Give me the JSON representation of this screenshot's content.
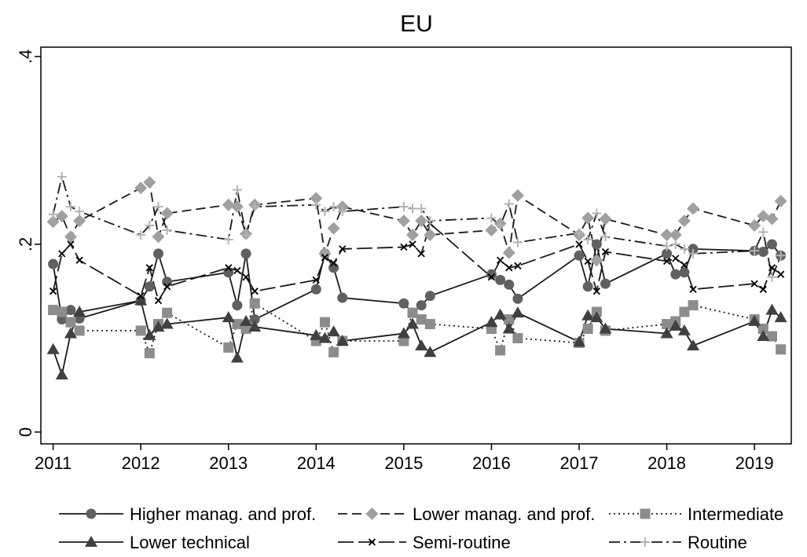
{
  "chart_data": {
    "type": "line",
    "title": "EU",
    "x": [
      2011,
      2011.1,
      2011.2,
      2011.3,
      2012,
      2012.1,
      2012.2,
      2012.3,
      2013,
      2013.1,
      2013.2,
      2013.3,
      2014,
      2014.1,
      2014.2,
      2014.3,
      2015,
      2015.1,
      2015.2,
      2015.3,
      2016,
      2016.1,
      2016.2,
      2016.3,
      2017,
      2017.1,
      2017.2,
      2017.3,
      2018,
      2018.1,
      2018.2,
      2018.3,
      2019,
      2019.1,
      2019.2,
      2019.3
    ],
    "xlim": [
      2010.86,
      2019.42
    ],
    "xticks": [
      2011,
      2012,
      2013,
      2014,
      2015,
      2016,
      2017,
      2018,
      2019
    ],
    "ylim": [
      -0.0126,
      0.41
    ],
    "yticks": [
      0,
      {
        "value": 0.2,
        "label": ".2"
      },
      {
        "value": 0.4,
        "label": ".4"
      }
    ],
    "legend": "bottom",
    "series": [
      {
        "name": "Higher manag. and prof.",
        "color": "#606060",
        "line_color": "#1a1a1a",
        "marker": "circle",
        "dash": "solid",
        "values": [
          0.179,
          0.12,
          0.13,
          0.121,
          0.14,
          0.155,
          0.19,
          0.16,
          0.17,
          0.135,
          0.19,
          0.12,
          0.152,
          0.19,
          0.175,
          0.143,
          0.137,
          0.127,
          0.135,
          0.145,
          0.168,
          0.162,
          0.157,
          0.142,
          0.188,
          0.155,
          0.2,
          0.158,
          0.19,
          0.168,
          0.17,
          0.195,
          0.193,
          0.192,
          0.2,
          0.188
        ]
      },
      {
        "name": "Lower manag. and prof.",
        "color": "#a0a0a0",
        "line_color": "#1a1a1a",
        "marker": "diamond",
        "dash": "dash",
        "values": [
          0.224,
          0.23,
          0.208,
          0.225,
          0.26,
          0.266,
          0.208,
          0.233,
          0.242,
          0.24,
          0.211,
          0.242,
          0.249,
          0.19,
          0.217,
          0.24,
          0.225,
          0.21,
          0.225,
          0.21,
          0.215,
          0.222,
          0.191,
          0.252,
          0.21,
          0.228,
          0.183,
          0.227,
          0.21,
          0.21,
          0.225,
          0.238,
          0.22,
          0.23,
          0.227,
          0.246
        ]
      },
      {
        "name": "Intermediate",
        "color": "#8c8c8c",
        "line_color": "#1a1a1a",
        "marker": "square",
        "dash": "dot",
        "values": [
          0.13,
          0.128,
          0.117,
          0.108,
          0.108,
          0.084,
          0.115,
          0.127,
          0.09,
          0.115,
          0.11,
          0.137,
          0.097,
          0.117,
          0.085,
          0.097,
          0.097,
          0.127,
          0.12,
          0.115,
          0.11,
          0.087,
          0.12,
          0.1,
          0.095,
          0.11,
          0.128,
          0.108,
          0.115,
          0.118,
          0.128,
          0.135,
          0.12,
          0.11,
          0.102,
          0.088
        ]
      },
      {
        "name": "Lower technical",
        "color": "#404040",
        "line_color": "#1a1a1a",
        "marker": "triangle",
        "dash": "solid",
        "values": [
          0.088,
          0.061,
          0.105,
          0.128,
          0.14,
          0.103,
          0.112,
          0.115,
          0.122,
          0.079,
          0.118,
          0.112,
          0.103,
          0.1,
          0.107,
          0.097,
          0.105,
          0.115,
          0.092,
          0.085,
          0.117,
          0.125,
          0.11,
          0.127,
          0.096,
          0.124,
          0.122,
          0.11,
          0.105,
          0.113,
          0.108,
          0.092,
          0.118,
          0.102,
          0.13,
          0.122
        ]
      },
      {
        "name": "Semi-routine",
        "color": "#000000",
        "line_color": "#1a1a1a",
        "marker": "x",
        "dash": "longdash",
        "values": [
          0.15,
          0.19,
          0.2,
          0.183,
          0.145,
          0.175,
          0.14,
          0.155,
          0.175,
          0.172,
          0.165,
          0.15,
          0.162,
          0.186,
          0.18,
          0.195,
          0.197,
          0.2,
          0.19,
          0.222,
          0.165,
          0.183,
          0.175,
          0.177,
          0.2,
          0.182,
          0.15,
          0.192,
          0.182,
          0.185,
          0.178,
          0.152,
          0.158,
          0.152,
          0.175,
          0.168
        ]
      },
      {
        "name": "Routine",
        "color": "#b4b4b4",
        "line_color": "#1a1a1a",
        "marker": "plus",
        "dash": "dashdot",
        "values": [
          0.232,
          0.272,
          0.24,
          0.235,
          0.21,
          0.22,
          0.24,
          0.215,
          0.205,
          0.258,
          0.21,
          0.24,
          0.242,
          0.235,
          0.24,
          0.235,
          0.24,
          0.238,
          0.238,
          0.225,
          0.228,
          0.22,
          0.243,
          0.202,
          0.212,
          0.205,
          0.233,
          0.208,
          0.198,
          0.2,
          0.195,
          0.19,
          0.193,
          0.213,
          0.165,
          0.188
        ]
      }
    ]
  }
}
